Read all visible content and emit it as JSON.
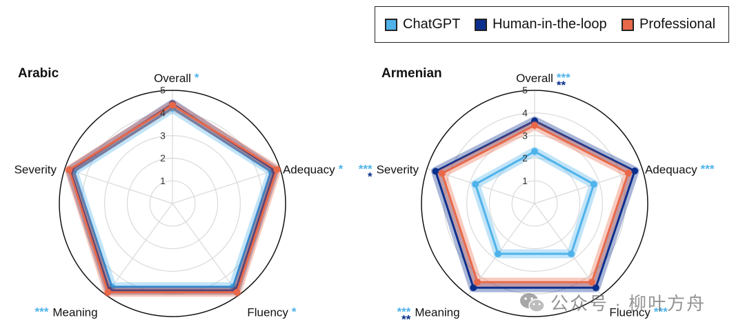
{
  "legend": {
    "items": [
      {
        "label": "ChatGPT",
        "color": "#4FB3EA"
      },
      {
        "label": "Human-in-the-loop",
        "color": "#0A2E8C"
      },
      {
        "label": "Professional",
        "color": "#E8694A"
      }
    ]
  },
  "watermark": {
    "text": "公众号 · 柳叶方舟",
    "icon": "wechat-icon"
  },
  "chart_data": [
    {
      "type": "radar",
      "title": "Arabic",
      "axes": [
        "Overall",
        "Adequacy",
        "Fluency",
        "Meaning",
        "Severity"
      ],
      "radial_ticks": [
        "1",
        "2",
        "3",
        "4",
        "5"
      ],
      "range": [
        0,
        5
      ],
      "significance": [
        {
          "axis": "Overall",
          "lines": [
            {
              "stars": "*",
              "color": "#4FB3EA"
            }
          ]
        },
        {
          "axis": "Adequacy",
          "lines": [
            {
              "stars": "*",
              "color": "#4FB3EA"
            }
          ]
        },
        {
          "axis": "Fluency",
          "lines": [
            {
              "stars": "*",
              "color": "#4FB3EA"
            }
          ]
        },
        {
          "axis": "Meaning",
          "lines": [
            {
              "stars": "***",
              "color": "#4FB3EA"
            }
          ]
        },
        {
          "axis": "Severity",
          "lines": []
        }
      ],
      "series": [
        {
          "name": "ChatGPT",
          "values": [
            4.2,
            4.6,
            4.55,
            4.55,
            4.6
          ]
        },
        {
          "name": "Human-in-the-loop",
          "values": [
            4.4,
            4.75,
            4.75,
            4.75,
            4.75
          ]
        },
        {
          "name": "Professional",
          "values": [
            4.35,
            4.85,
            4.85,
            4.85,
            4.8
          ]
        }
      ]
    },
    {
      "type": "radar",
      "title": "Armenian",
      "axes": [
        "Overall",
        "Adequacy",
        "Fluency",
        "Meaning",
        "Severity"
      ],
      "radial_ticks": [
        "1",
        "2",
        "3",
        "4",
        "5"
      ],
      "range": [
        0,
        5
      ],
      "significance": [
        {
          "axis": "Overall",
          "lines": [
            {
              "stars": "***",
              "color": "#4FB3EA"
            },
            {
              "stars": "**",
              "color": "#0A2E8C"
            }
          ]
        },
        {
          "axis": "Adequacy",
          "lines": [
            {
              "stars": "***",
              "color": "#4FB3EA"
            }
          ]
        },
        {
          "axis": "Fluency",
          "lines": [
            {
              "stars": "***",
              "color": "#4FB3EA"
            }
          ]
        },
        {
          "axis": "Meaning",
          "lines": [
            {
              "stars": "***",
              "color": "#4FB3EA"
            },
            {
              "stars": "**",
              "color": "#0A2E8C"
            }
          ]
        },
        {
          "axis": "Severity",
          "lines": [
            {
              "stars": "***",
              "color": "#4FB3EA"
            },
            {
              "stars": "*",
              "color": "#0A2E8C"
            }
          ]
        }
      ],
      "series": [
        {
          "name": "ChatGPT",
          "values": [
            2.3,
            2.75,
            2.75,
            2.75,
            2.75
          ]
        },
        {
          "name": "Human-in-the-loop",
          "values": [
            3.65,
            4.65,
            4.6,
            4.6,
            4.6
          ]
        },
        {
          "name": "Professional",
          "values": [
            3.45,
            4.35,
            4.3,
            4.3,
            4.3
          ]
        }
      ]
    }
  ]
}
